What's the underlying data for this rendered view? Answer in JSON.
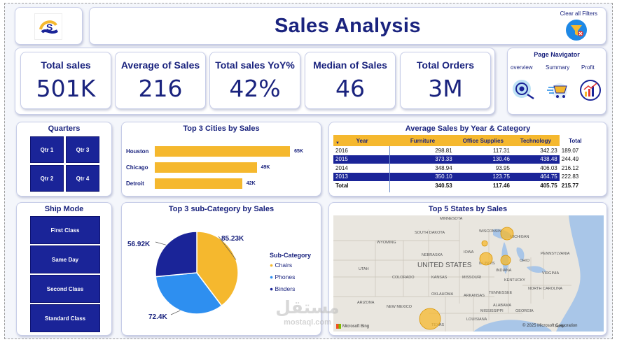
{
  "header": {
    "title": "Sales Analysis",
    "clear_filters_label": "Clear all Filters"
  },
  "kpis": [
    {
      "label": "Total sales",
      "value": "501K"
    },
    {
      "label": "Average of Sales",
      "value": "216"
    },
    {
      "label": "Total sales YoY%",
      "value": "42%"
    },
    {
      "label": "Median of Sales",
      "value": "46"
    },
    {
      "label": "Total Orders",
      "value": "3M"
    }
  ],
  "page_navigator": {
    "title": "Page Navigator",
    "items": [
      {
        "label": "overview",
        "icon": "eye-icon"
      },
      {
        "label": "Summary",
        "icon": "cart-icon"
      },
      {
        "label": "Profit",
        "icon": "growth-chart-icon"
      }
    ]
  },
  "quarters": {
    "title": "Quarters",
    "items": [
      "Qtr 1",
      "Qtr 3",
      "Qtr 2",
      "Qtr 4"
    ]
  },
  "ship_mode": {
    "title": "Ship Mode",
    "items": [
      "First Class",
      "Same Day",
      "Second Class",
      "Standard Class"
    ]
  },
  "cities": {
    "title": "Top 3 Cities by Sales",
    "chart_data": {
      "type": "bar",
      "orientation": "horizontal",
      "categories": [
        "Houston",
        "Chicago",
        "Detroit"
      ],
      "values": [
        65,
        49,
        42
      ],
      "labels": [
        "65K",
        "49K",
        "42K"
      ],
      "xlim": [
        0,
        70
      ],
      "color": "#f5b82e"
    }
  },
  "avg_table": {
    "title": "Average Sales by Year & Category",
    "columns": [
      "Year",
      "Furniture",
      "Office Supplies",
      "Technology",
      "Total"
    ],
    "rows": [
      {
        "year": "2016",
        "furniture": "298.81",
        "office": "117.31",
        "tech": "342.23",
        "total": "189.07",
        "highlight": false
      },
      {
        "year": "2015",
        "furniture": "373.33",
        "office": "130.46",
        "tech": "438.48",
        "total": "244.49",
        "highlight": true
      },
      {
        "year": "2014",
        "furniture": "348.94",
        "office": "93.95",
        "tech": "406.03",
        "total": "216.12",
        "highlight": false
      },
      {
        "year": "2013",
        "furniture": "350.10",
        "office": "123.75",
        "tech": "464.75",
        "total": "222.83",
        "highlight": true
      }
    ],
    "total_row": {
      "year": "Total",
      "furniture": "340.53",
      "office": "117.46",
      "tech": "405.75",
      "total": "215.77"
    }
  },
  "subcategory": {
    "title": "Top 3 sub-Category by Sales",
    "legend_title": "Sub-Category",
    "chart_data": {
      "type": "pie",
      "categories": [
        "Chairs",
        "Phones",
        "Binders"
      ],
      "values": [
        85.23,
        72.4,
        56.92
      ],
      "labels": [
        "85.23K",
        "72.4K",
        "56.92K"
      ],
      "colors": [
        "#f5b82e",
        "#2e8ff0",
        "#1a2498"
      ]
    }
  },
  "states_map": {
    "title": "Top 5 States by Sales",
    "state_labels": [
      "MINNESOTA",
      "SOUTH DAKOTA",
      "WISCONSIN",
      "MICHIGAN",
      "WYOMING",
      "NEBRASKA",
      "IOWA",
      "UTAH",
      "COLORADO",
      "KANSAS",
      "MISSOURI",
      "ILLINOIS",
      "INDIANA",
      "OHIO",
      "PENNSYLVANIA",
      "KENTUCKY",
      "VIRGINIA",
      "TENNESSEE",
      "NORTH CAROLINA",
      "OKLAHOMA",
      "ARKANSAS",
      "ARIZONA",
      "NEW MEXICO",
      "MISSISSIPPI",
      "ALABAMA",
      "GEORGIA",
      "LOUISIANA",
      "TEXAS"
    ],
    "country_label": "UNITED STATES",
    "attribution": "© 2025 Microsoft Corporation",
    "terms": "Terms",
    "bing_label": "Microsoft Bing"
  },
  "watermark": {
    "arabic": "مستقل",
    "latin": "mostaql.com"
  },
  "colors": {
    "navy": "#1a2498",
    "gold": "#f5b82e",
    "blue": "#2e8ff0"
  }
}
